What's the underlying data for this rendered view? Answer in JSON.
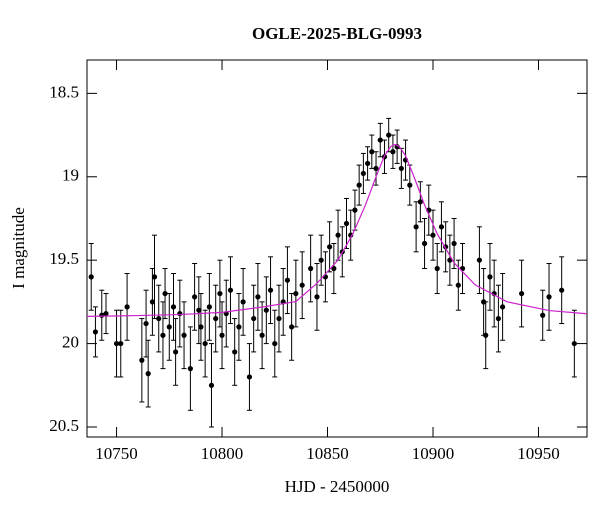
{
  "chart_data": {
    "type": "scatter",
    "title": "OGLE-2025-BLG-0993",
    "x_label": "HJD - 2450000",
    "y_label": "I magnitude",
    "xlim": [
      10736,
      10973
    ],
    "ylim": [
      20.56,
      18.3
    ],
    "xticks": [
      10750,
      10800,
      10850,
      10900,
      10950
    ],
    "yticks": [
      18.5,
      19,
      19.5,
      20,
      20.5
    ],
    "series": [
      {
        "type": "scatter",
        "color": "#000000",
        "x": [
          10738,
          10740,
          10743,
          10745,
          10750,
          10752,
          10755,
          10762,
          10764,
          10765,
          10767,
          10768,
          10770,
          10772,
          10773,
          10775,
          10777,
          10778,
          10780,
          10782,
          10785,
          10787,
          10789,
          10790,
          10792,
          10794,
          10795,
          10797,
          10799,
          10800,
          10802,
          10804,
          10806,
          10808,
          10810,
          10813,
          10815,
          10817,
          10819,
          10821,
          10823,
          10825,
          10827,
          10829,
          10831,
          10833,
          10835,
          10838,
          10842,
          10845,
          10847,
          10849,
          10851,
          10853,
          10855,
          10857,
          10859,
          10861,
          10863,
          10865,
          10867,
          10869,
          10871,
          10873,
          10875,
          10877,
          10879,
          10881,
          10883,
          10885,
          10887,
          10889,
          10892,
          10894,
          10896,
          10898,
          10900,
          10902,
          10904,
          10906,
          10908,
          10910,
          10912,
          10914,
          10922,
          10924,
          10925,
          10927,
          10929,
          10931,
          10933,
          10942,
          10952,
          10955,
          10961,
          10967
        ],
        "values": [
          19.6,
          19.93,
          19.83,
          19.82,
          20.0,
          20.0,
          19.78,
          20.1,
          19.88,
          20.18,
          19.75,
          19.6,
          19.85,
          19.95,
          19.7,
          19.9,
          19.78,
          20.05,
          19.82,
          19.95,
          20.15,
          19.72,
          19.8,
          19.9,
          20.0,
          19.78,
          20.25,
          19.85,
          19.7,
          19.95,
          19.82,
          19.68,
          20.05,
          19.9,
          19.75,
          20.2,
          19.85,
          19.72,
          19.95,
          19.8,
          19.68,
          20.0,
          19.85,
          19.75,
          19.62,
          19.9,
          19.7,
          19.65,
          19.55,
          19.72,
          19.5,
          19.6,
          19.42,
          19.55,
          19.35,
          19.45,
          19.28,
          19.35,
          19.2,
          19.05,
          18.98,
          18.92,
          18.85,
          18.95,
          18.78,
          18.88,
          18.75,
          18.85,
          18.82,
          18.95,
          18.9,
          19.05,
          19.3,
          19.15,
          19.4,
          19.2,
          19.35,
          19.55,
          19.3,
          19.42,
          19.5,
          19.4,
          19.65,
          19.55,
          19.5,
          19.75,
          19.95,
          19.6,
          19.7,
          19.85,
          19.78,
          19.7,
          19.83,
          19.72,
          19.68,
          20.0
        ],
        "errors": [
          0.2,
          0.15,
          0.15,
          0.12,
          0.2,
          0.2,
          0.2,
          0.25,
          0.2,
          0.2,
          0.2,
          0.25,
          0.2,
          0.2,
          0.15,
          0.2,
          0.2,
          0.2,
          0.2,
          0.2,
          0.25,
          0.2,
          0.2,
          0.2,
          0.2,
          0.2,
          0.25,
          0.2,
          0.2,
          0.2,
          0.2,
          0.2,
          0.2,
          0.2,
          0.2,
          0.2,
          0.2,
          0.2,
          0.2,
          0.2,
          0.2,
          0.2,
          0.2,
          0.2,
          0.2,
          0.2,
          0.2,
          0.2,
          0.2,
          0.2,
          0.15,
          0.15,
          0.15,
          0.15,
          0.15,
          0.15,
          0.15,
          0.15,
          0.12,
          0.12,
          0.12,
          0.1,
          0.1,
          0.1,
          0.1,
          0.1,
          0.1,
          0.1,
          0.1,
          0.12,
          0.12,
          0.12,
          0.15,
          0.12,
          0.15,
          0.15,
          0.15,
          0.15,
          0.15,
          0.15,
          0.15,
          0.15,
          0.15,
          0.15,
          0.2,
          0.2,
          0.2,
          0.2,
          0.2,
          0.2,
          0.2,
          0.2,
          0.15,
          0.2,
          0.2,
          0.2
        ]
      },
      {
        "type": "line",
        "color": "#cc22cc",
        "x": [
          10736,
          10760,
          10780,
          10800,
          10820,
          10835,
          10845,
          10855,
          10862,
          10868,
          10873,
          10877,
          10880,
          10882,
          10884,
          10887,
          10891,
          10896,
          10902,
          10910,
          10920,
          10935,
          10955,
          10973
        ],
        "values": [
          19.837,
          19.832,
          19.826,
          19.813,
          19.779,
          19.748,
          19.639,
          19.499,
          19.342,
          19.169,
          19.0,
          18.874,
          18.818,
          18.806,
          18.818,
          18.874,
          19.0,
          19.169,
          19.342,
          19.516,
          19.648,
          19.749,
          19.802,
          19.821
        ]
      }
    ]
  }
}
